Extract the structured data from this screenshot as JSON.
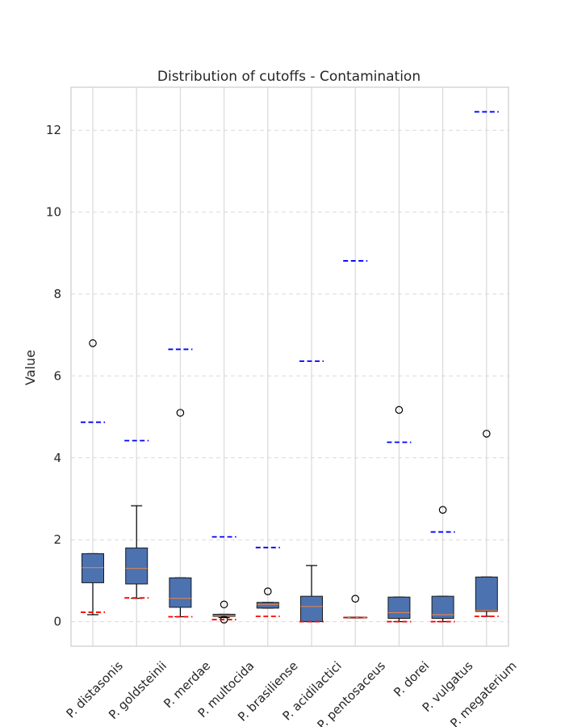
{
  "chart_data": {
    "type": "box",
    "title": "Distribution of cutoffs - Contamination",
    "xlabel": "",
    "ylabel": "Value",
    "ylim": [
      -0.6,
      13.05
    ],
    "yticks": [
      0,
      2,
      4,
      6,
      8,
      10,
      12
    ],
    "grid": true,
    "categories": [
      "P. distasonis",
      "P. goldsteinii",
      "P. merdae",
      "P. multocida",
      "P. brasiliense",
      "P. acidilactici",
      "P. pentosaceus",
      "P. dorei",
      "P. vulgatus",
      "P. megaterium"
    ],
    "boxes": [
      {
        "whisker_low": 0.17,
        "q1": 0.95,
        "median": 1.32,
        "q3": 1.66,
        "whisker_high": 1.66,
        "outliers": [
          6.8
        ],
        "red_marker": 0.23,
        "blue_marker": 4.87
      },
      {
        "whisker_low": 0.57,
        "q1": 0.92,
        "median": 1.3,
        "q3": 1.8,
        "whisker_high": 2.83,
        "outliers": [],
        "red_marker": 0.58,
        "blue_marker": 4.42
      },
      {
        "whisker_low": 0.12,
        "q1": 0.35,
        "median": 0.57,
        "q3": 1.07,
        "whisker_high": 1.07,
        "outliers": [
          5.1
        ],
        "red_marker": 0.12,
        "blue_marker": 6.65
      },
      {
        "whisker_low": 0.1,
        "q1": 0.13,
        "median": 0.15,
        "q3": 0.18,
        "whisker_high": 0.18,
        "outliers": [
          0.42,
          0.05
        ],
        "red_marker": 0.05,
        "blue_marker": 2.07
      },
      {
        "whisker_low": 0.33,
        "q1": 0.33,
        "median": 0.42,
        "q3": 0.47,
        "whisker_high": 0.47,
        "outliers": [
          0.74
        ],
        "red_marker": 0.13,
        "blue_marker": 1.81
      },
      {
        "whisker_low": 0.0,
        "q1": 0.0,
        "median": 0.37,
        "q3": 0.62,
        "whisker_high": 1.37,
        "outliers": [],
        "red_marker": 0.0,
        "blue_marker": 6.36
      },
      {
        "whisker_low": 0.09,
        "q1": 0.09,
        "median": 0.1,
        "q3": 0.11,
        "whisker_high": 0.11,
        "outliers": [
          0.56
        ],
        "red_marker": 0.1,
        "blue_marker": 8.81
      },
      {
        "whisker_low": 0.0,
        "q1": 0.08,
        "median": 0.22,
        "q3": 0.6,
        "whisker_high": 0.6,
        "outliers": [
          5.17
        ],
        "red_marker": 0.0,
        "blue_marker": 4.38
      },
      {
        "whisker_low": 0.0,
        "q1": 0.08,
        "median": 0.17,
        "q3": 0.62,
        "whisker_high": 0.62,
        "outliers": [
          2.73
        ],
        "red_marker": 0.0,
        "blue_marker": 2.19
      },
      {
        "whisker_low": 0.13,
        "q1": 0.25,
        "median": 0.27,
        "q3": 1.09,
        "whisker_high": 1.09,
        "outliers": [
          4.59
        ],
        "red_marker": 0.13,
        "blue_marker": 12.45
      }
    ],
    "colors": {
      "box_fill": "#4c72b0",
      "box_edge": "#1a1a1a",
      "median": "#dd8452",
      "red_marker": "#ff0000",
      "blue_marker": "#0000ff",
      "grid": "#d9d9d9",
      "axes_edge": "#cccccc"
    }
  }
}
